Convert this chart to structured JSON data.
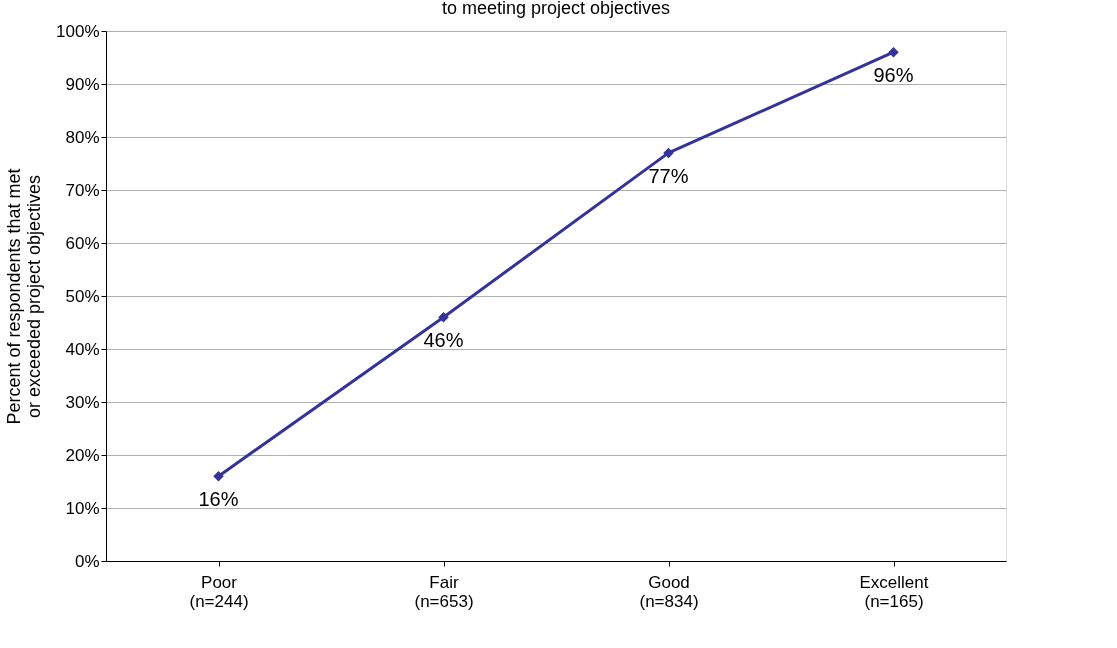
{
  "chart_data": {
    "type": "line",
    "title": "to meeting project objectives",
    "ylabel": "Percent of respondents that met\nor exceeded project objectives",
    "categories": [
      "Poor\n(n=244)",
      "Fair\n(n=653)",
      "Good\n(n=834)",
      "Excellent\n(n=165)"
    ],
    "series": [
      {
        "color": "#333399",
        "values": [
          16,
          46,
          77,
          96
        ],
        "value_labels": [
          "16%",
          "46%",
          "77%",
          "96%"
        ]
      }
    ],
    "ylim": [
      0,
      100
    ],
    "yticks": [
      {
        "value": 0,
        "label": "0%"
      },
      {
        "value": 10,
        "label": "10%"
      },
      {
        "value": 20,
        "label": "20%"
      },
      {
        "value": 30,
        "label": "30%"
      },
      {
        "value": 40,
        "label": "40%"
      },
      {
        "value": 50,
        "label": "50%"
      },
      {
        "value": 60,
        "label": "60%"
      },
      {
        "value": 70,
        "label": "70%"
      },
      {
        "value": 80,
        "label": "80%"
      },
      {
        "value": 90,
        "label": "90%"
      },
      {
        "value": 100,
        "label": "100%"
      }
    ],
    "grid": "y",
    "marker": "diamond",
    "line_style": "solid"
  }
}
